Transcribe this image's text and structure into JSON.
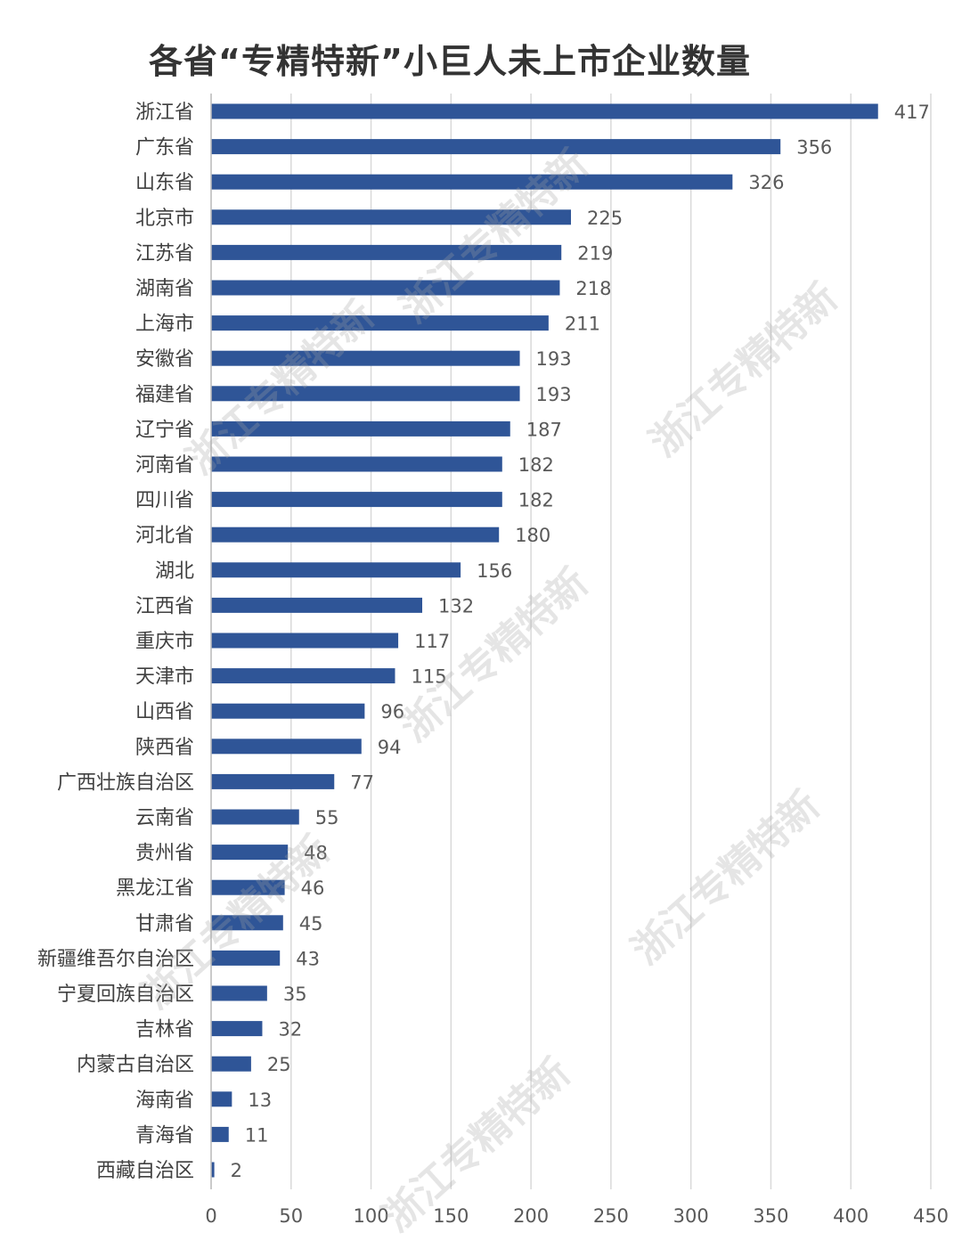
{
  "chart_data": {
    "type": "bar",
    "orientation": "horizontal",
    "title": "各省“专精特新”小巨人未上市企业数量",
    "xlabel": "",
    "ylabel": "",
    "xlim": [
      0,
      450
    ],
    "xticks": [
      0,
      50,
      100,
      150,
      200,
      250,
      300,
      350,
      400,
      450
    ],
    "grid": true,
    "bar_color": "#2f5597",
    "categories": [
      "浙江省",
      "广东省",
      "山东省",
      "北京市",
      "江苏省",
      "湖南省",
      "上海市",
      "安徽省",
      "福建省",
      "辽宁省",
      "河南省",
      "四川省",
      "河北省",
      "湖北",
      "江西省",
      "重庆市",
      "天津市",
      "山西省",
      "陕西省",
      "广西壮族自治区",
      "云南省",
      "贵州省",
      "黑龙江省",
      "甘肃省",
      "新疆维吾尔自治区",
      "宁夏回族自治区",
      "吉林省",
      "内蒙古自治区",
      "海南省",
      "青海省",
      "西藏自治区"
    ],
    "values": [
      417,
      356,
      326,
      225,
      219,
      218,
      211,
      193,
      193,
      187,
      182,
      182,
      180,
      156,
      132,
      117,
      115,
      96,
      94,
      77,
      55,
      48,
      46,
      45,
      43,
      35,
      32,
      25,
      13,
      11,
      2
    ]
  },
  "watermark": "浙江专精特新"
}
